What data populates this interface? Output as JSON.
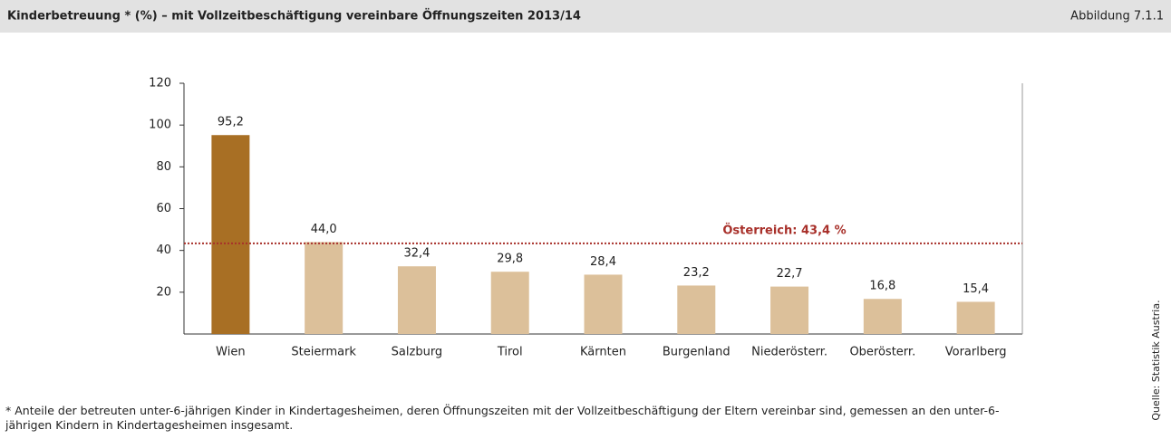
{
  "chart_data": {
    "type": "bar",
    "title": "Kinderbetreuung * (%) – mit Vollzeitbeschäftigung vereinbare Öffnungszeiten 2013/14",
    "figure_label": "Abbildung 7.1.1",
    "categories": [
      "Wien",
      "Steiermark",
      "Salzburg",
      "Tirol",
      "Kärnten",
      "Burgenland",
      "Niederösterr.",
      "Oberösterr.",
      "Vorarlberg"
    ],
    "values": [
      95.2,
      44.0,
      32.4,
      29.8,
      28.4,
      23.2,
      22.7,
      16.8,
      15.4
    ],
    "value_labels": [
      "95,2",
      "44,0",
      "32,4",
      "29,8",
      "28,4",
      "23,2",
      "22,7",
      "16,8",
      "15,4"
    ],
    "colors": [
      "#a86f24",
      "#dcc09a",
      "#dcc09a",
      "#dcc09a",
      "#dcc09a",
      "#dcc09a",
      "#dcc09a",
      "#dcc09a",
      "#dcc09a"
    ],
    "ylim": [
      0,
      120
    ],
    "yticks": [
      20,
      40,
      60,
      80,
      100,
      120
    ],
    "reference_line": {
      "value": 43.4,
      "label": "Österreich: 43,4 %",
      "color": "#a8302a"
    },
    "footnote": "* Anteile der betreuten unter-6-jährigen Kinder in Kindertagesheimen, deren Öffnungszeiten mit der Vollzeitbeschäftigung der Eltern vereinbar sind, gemessen an den unter-6-jährigen Kindern in Kindertagesheimen insgesamt.",
    "source": "Quelle: Statistik Austria."
  }
}
